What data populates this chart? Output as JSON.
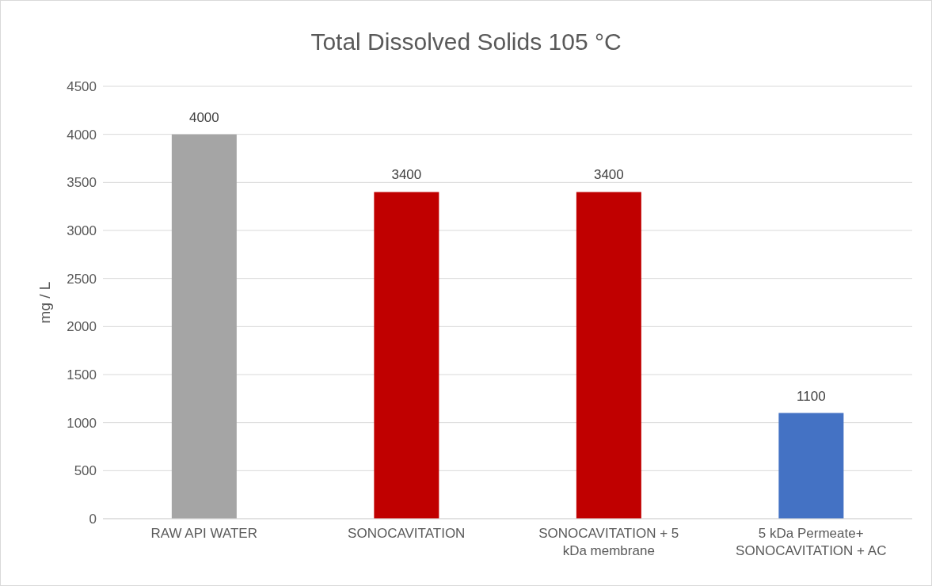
{
  "chart_data": {
    "type": "bar",
    "title": "Total Dissolved Solids 105 °C",
    "ylabel": "mg / L",
    "categories": [
      "RAW API WATER",
      "SONOCAVITATION",
      "SONOCAVITATION + 5 kDa membrane",
      "5 kDa Permeate+ SONOCAVITATION + AC"
    ],
    "values": [
      4000,
      3400,
      3400,
      1100
    ],
    "colors": [
      "#a5a5a5",
      "#c00000",
      "#c00000",
      "#4472c4"
    ],
    "errors": [
      0,
      0,
      0,
      0
    ],
    "ylim": [
      0,
      4500
    ],
    "yticks": [
      0,
      500,
      1000,
      1500,
      2000,
      2500,
      3000,
      3500,
      4000,
      4500
    ],
    "grid": "y",
    "data_labels": true,
    "legend": false
  }
}
